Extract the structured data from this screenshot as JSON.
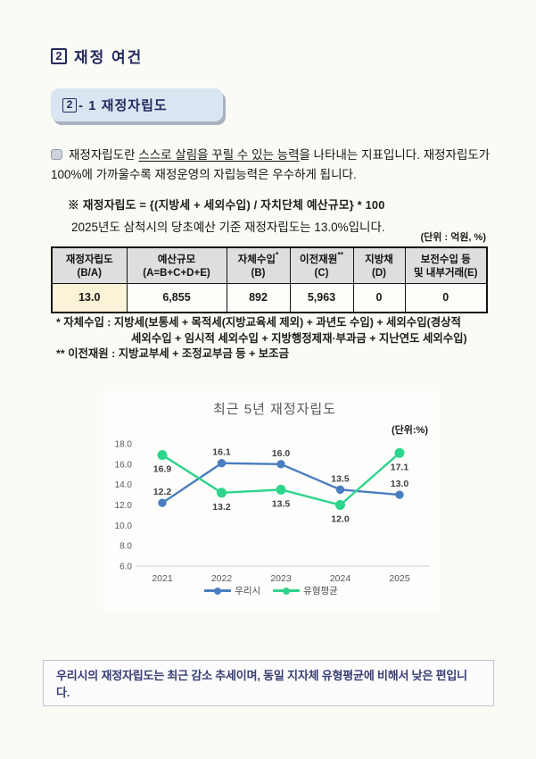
{
  "header": {
    "section_no": "2",
    "section_title": "재정 여건",
    "sub_no": "2",
    "sub_rest": "- 1 재정자립도"
  },
  "intro": {
    "lead_pre": "재정자립도란 ",
    "lead_underline": "스스로 살림을 꾸릴 수 있는 능력",
    "lead_post": "을 나타내는 지표입니다. 재정자립도가 100%에 가까울수록 재정운영의 자립능력은 우수하게 됩니다.",
    "formula": "※ 재정자립도 = {(지방세 + 세외수입) / 자치단체 예산규모} * 100",
    "statement": "2025년도 삼척시의 당초예산 기준 재정자립도는 13.0%입니다."
  },
  "table": {
    "units_note": "(단위 : 억원, %)",
    "headers": [
      {
        "line1": "재정자립도",
        "sup": "",
        "line2": "(B/A)"
      },
      {
        "line1": "예산규모",
        "sup": "",
        "line2": "(A=B+C+D+E)"
      },
      {
        "line1": "자체수입",
        "sup": "*",
        "line2": "(B)"
      },
      {
        "line1": "이전재원",
        "sup": "**",
        "line2": "(C)"
      },
      {
        "line1": "지방채",
        "sup": "",
        "line2": "(D)"
      },
      {
        "line1": "보전수입 등",
        "sup": "",
        "line2": "및 내부거래(E)"
      }
    ],
    "values": [
      "13.0",
      "6,855",
      "892",
      "5,963",
      "0",
      "0"
    ]
  },
  "footnotes": {
    "fn1_line1": "* 자체수입 : 지방세(보통세 + 목적세(지방교육세 제외) + 과년도 수입) + 세외수입(경상적",
    "fn1_line2": "세외수입 + 임시적 세외수입 + 지방행정제재·부과금 + 지난연도 세외수입)",
    "fn2": "** 이전재원 : 지방교부세 + 조정교부금 등 + 보조금"
  },
  "chart_data": {
    "type": "line",
    "title": "최근 5년 재정자립도",
    "unit_label": "(단위:%)",
    "categories": [
      "2021",
      "2022",
      "2023",
      "2024",
      "2025"
    ],
    "series": [
      {
        "name": "우리시",
        "color": "#4a7ec0",
        "values": [
          12.2,
          16.1,
          16.0,
          13.5,
          13.0
        ],
        "label_position": "above"
      },
      {
        "name": "유형평균",
        "color": "#2ed48b",
        "values": [
          16.9,
          13.2,
          13.5,
          12.0,
          17.1
        ],
        "label_position": "below"
      }
    ],
    "ylim": [
      6.0,
      18.0
    ],
    "ytick_step": 2.0,
    "grid": false,
    "legend_position": "bottom",
    "axis_color": "#d9d9d9",
    "tick_color": "#595959",
    "label_color": "#404040",
    "title_color": "#595959"
  },
  "summary": {
    "text": "우리시의 재정자립도는 최근 감소 추세이며, 동일 지자체 유형평균에 비해서 낮은 편입니다."
  },
  "colors": {
    "navy": "#232a5e",
    "subtitle_bg": "#d9e5f1",
    "table_header_bg": "#dedede",
    "highlight_cell_bg": "#faf3d7",
    "series_blue": "#4a7ec0",
    "series_green": "#2ed48b"
  }
}
